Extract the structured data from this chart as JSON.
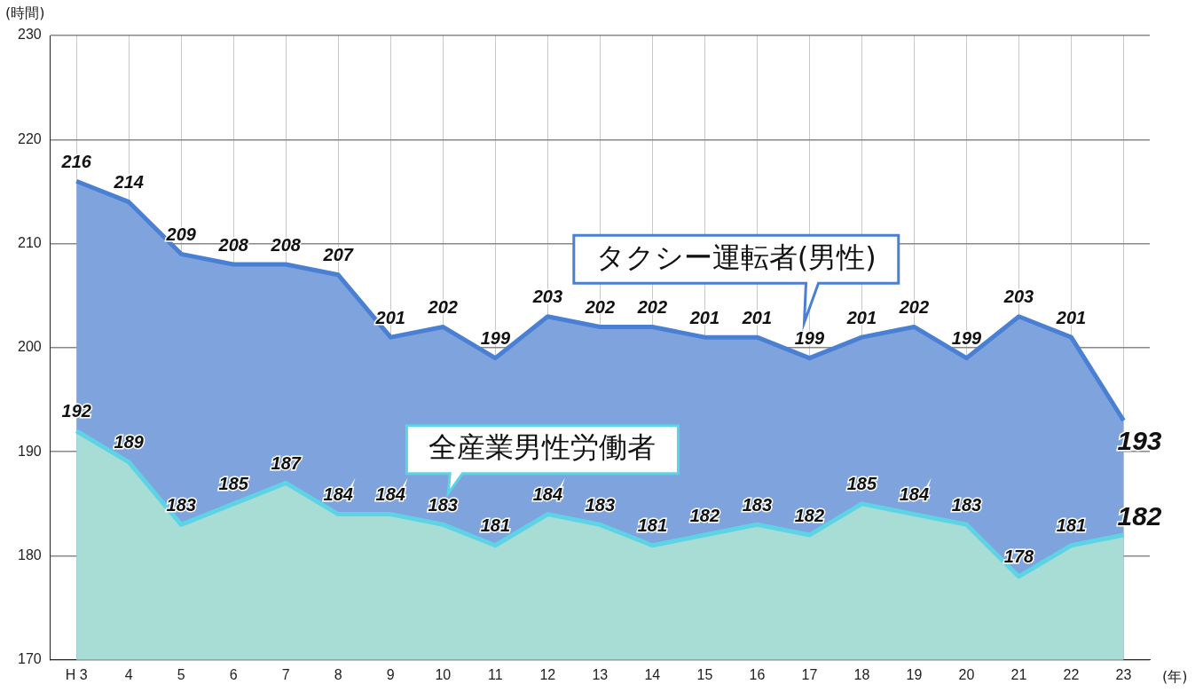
{
  "chart_data": {
    "type": "area",
    "ylabel": "(時間)",
    "xlabel": "(年)",
    "categories": [
      "H 3",
      "4",
      "5",
      "6",
      "7",
      "8",
      "9",
      "10",
      "11",
      "12",
      "13",
      "14",
      "15",
      "16",
      "17",
      "18",
      "19",
      "20",
      "21",
      "22",
      "23"
    ],
    "series": [
      {
        "name": "タクシー運転者(男性)",
        "color": "#4a80d4",
        "values": [
          216,
          214,
          209,
          208,
          208,
          207,
          201,
          202,
          199,
          203,
          202,
          202,
          201,
          201,
          199,
          201,
          202,
          199,
          203,
          201,
          193
        ]
      },
      {
        "name": "全産業男性労働者",
        "color": "#5fd3e6",
        "values": [
          192,
          189,
          183,
          185,
          187,
          184,
          184,
          183,
          181,
          184,
          183,
          181,
          182,
          183,
          182,
          185,
          184,
          183,
          178,
          181,
          182
        ]
      }
    ],
    "ylim": [
      170,
      230
    ],
    "yticks": [
      170,
      180,
      190,
      200,
      210,
      220,
      230
    ],
    "grid": true,
    "legend": false,
    "marker": "none",
    "line_style": "solid",
    "data_labels": true
  }
}
